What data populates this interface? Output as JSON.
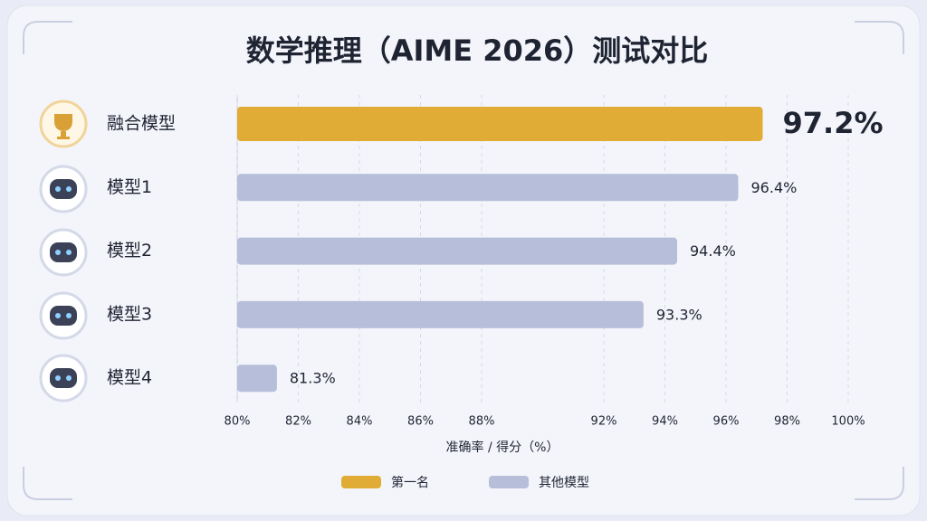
{
  "chart_data": {
    "type": "hbar",
    "title": "数学推理（AIME 2026）测试对比",
    "categories": [
      "融合模型",
      "模型1",
      "模型2",
      "模型3",
      "模型4"
    ],
    "values": [
      97.2,
      96.4,
      94.4,
      93.3,
      81.3
    ],
    "value_labels": [
      "97.2%",
      "96.4%",
      "94.4%",
      "93.3%",
      "81.3%"
    ],
    "colors": [
      "#e0ac35",
      "#b6bed9",
      "#b6bed9",
      "#b6bed9",
      "#b6bed9"
    ],
    "xlim": [
      80,
      100
    ],
    "xticks": [
      {
        "value": 80,
        "label": "80%"
      },
      {
        "value": 82,
        "label": "82%"
      },
      {
        "value": 84,
        "label": "84%"
      },
      {
        "value": 86,
        "label": "86%"
      },
      {
        "value": 88,
        "label": "88%"
      },
      {
        "value": 92,
        "label": "92%"
      },
      {
        "value": 94,
        "label": "94%"
      },
      {
        "value": 96,
        "label": "96%"
      },
      {
        "value": 98,
        "label": "98%"
      },
      {
        "value": 100,
        "label": "100%"
      }
    ],
    "xlabel": "准确率 / 得分（%）",
    "grid": true,
    "legend": [
      {
        "name": "第一名",
        "color": "#e0ac35"
      },
      {
        "name": "其他模型",
        "color": "#b6bed9"
      }
    ]
  }
}
